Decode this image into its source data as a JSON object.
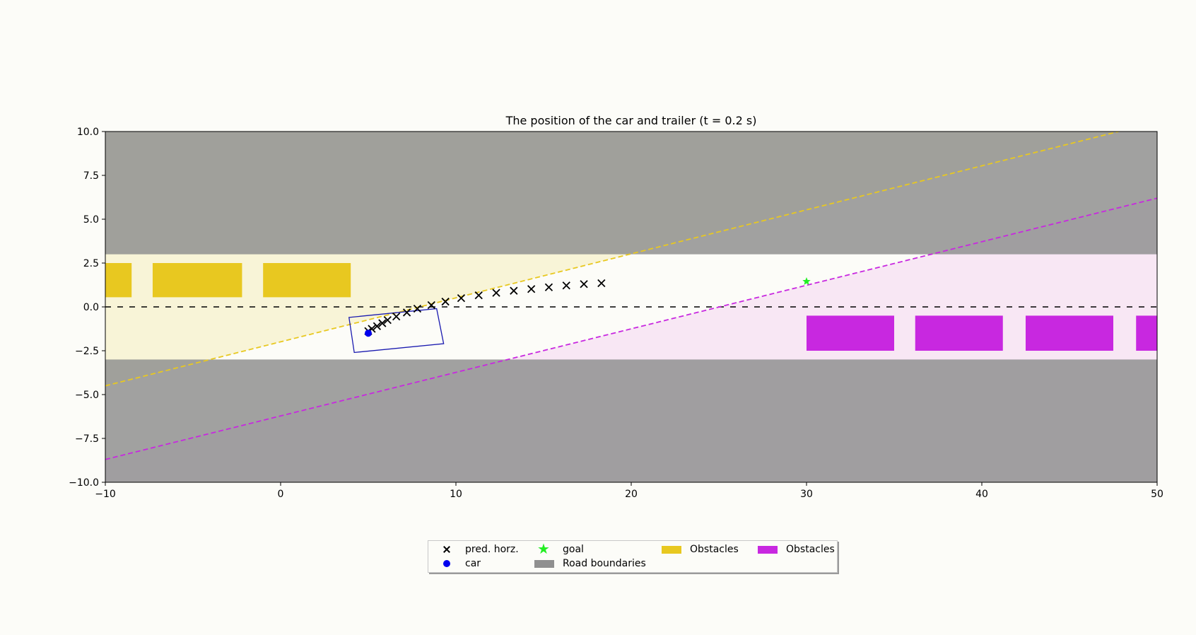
{
  "chart_data": {
    "type": "scatter",
    "title": "The position of the car and trailer (t =  0.2 s)",
    "xlabel": "",
    "ylabel": "",
    "xlim": [
      -10,
      50
    ],
    "ylim": [
      -10,
      10
    ],
    "xticks": [
      -10,
      0,
      10,
      20,
      30,
      40,
      50
    ],
    "xtick_labels": [
      "−10",
      "0",
      "10",
      "20",
      "30",
      "40",
      "50"
    ],
    "yticks": [
      10.0,
      7.5,
      5.0,
      2.5,
      0.0,
      -2.5,
      -5.0,
      -7.5,
      -10.0
    ],
    "ytick_labels": [
      "10.0",
      "7.5",
      "5.0",
      "2.5",
      "0.0",
      "−2.5",
      "−5.0",
      "−7.5",
      "−10.0"
    ],
    "grid": false,
    "legend_position": "lower-center",
    "road": {
      "upper_boundary": [
        3,
        10
      ],
      "lower_boundary": [
        -10,
        -3
      ],
      "center_line_y": 0,
      "color": "#909090"
    },
    "yellow_obstacles": [
      {
        "x": [
          -10,
          -8.5
        ],
        "y": [
          0.55,
          2.5
        ]
      },
      {
        "x": [
          -7.3,
          -2.2
        ],
        "y": [
          0.55,
          2.5
        ]
      },
      {
        "x": [
          -1.0,
          4.0
        ],
        "y": [
          0.55,
          2.5
        ]
      }
    ],
    "magenta_obstacles": [
      {
        "x": [
          30.0,
          35.0
        ],
        "y": [
          -2.5,
          -0.5
        ]
      },
      {
        "x": [
          36.2,
          41.2
        ],
        "y": [
          -2.5,
          -0.5
        ]
      },
      {
        "x": [
          42.5,
          47.5
        ],
        "y": [
          -2.5,
          -0.5
        ]
      },
      {
        "x": [
          48.8,
          50.0
        ],
        "y": [
          -2.5,
          -0.5
        ]
      }
    ],
    "yellow_dashed_line": {
      "x": [
        -10,
        47.8
      ],
      "y": [
        -4.5,
        10.0
      ]
    },
    "magenta_dashed_line": {
      "x": [
        -10,
        50
      ],
      "y": [
        -8.7,
        6.2
      ]
    },
    "series": [
      {
        "name": "pred. horz.",
        "marker": "x",
        "color": "#000000",
        "x": [
          5.0,
          5.2,
          5.5,
          5.8,
          6.1,
          6.6,
          7.2,
          7.8,
          8.6,
          9.4,
          10.3,
          11.3,
          12.3,
          13.3,
          14.3,
          15.3,
          16.3,
          17.3,
          18.3
        ],
        "y": [
          -1.38,
          -1.25,
          -1.1,
          -0.93,
          -0.75,
          -0.55,
          -0.32,
          -0.1,
          0.1,
          0.3,
          0.5,
          0.66,
          0.8,
          0.92,
          1.02,
          1.12,
          1.22,
          1.3,
          1.35
        ]
      },
      {
        "name": "car",
        "marker": "o",
        "color": "#0000ee",
        "x": [
          5.0
        ],
        "y": [
          -1.5
        ]
      },
      {
        "name": "goal",
        "marker": "*",
        "color": "#22ee22",
        "x": [
          30.0
        ],
        "y": [
          1.45
        ]
      }
    ],
    "car_outline": {
      "x": [
        3.9,
        8.9,
        9.3,
        4.2
      ],
      "y": [
        -0.6,
        -0.1,
        -2.1,
        -2.6
      ],
      "color": "#1a1ab0"
    }
  },
  "legend": {
    "items": [
      {
        "label": "pred. horz.",
        "key": "x-marker"
      },
      {
        "label": "goal",
        "key": "star-marker"
      },
      {
        "label": "Obstacles",
        "key": "yellow-patch",
        "color": "#e8c820"
      },
      {
        "label": "Obstacles",
        "key": "magenta-patch",
        "color": "#c828e0"
      },
      {
        "label": "car",
        "key": "dot-marker"
      },
      {
        "label": "Road boundaries",
        "key": "gray-patch",
        "color": "#909090"
      }
    ]
  }
}
